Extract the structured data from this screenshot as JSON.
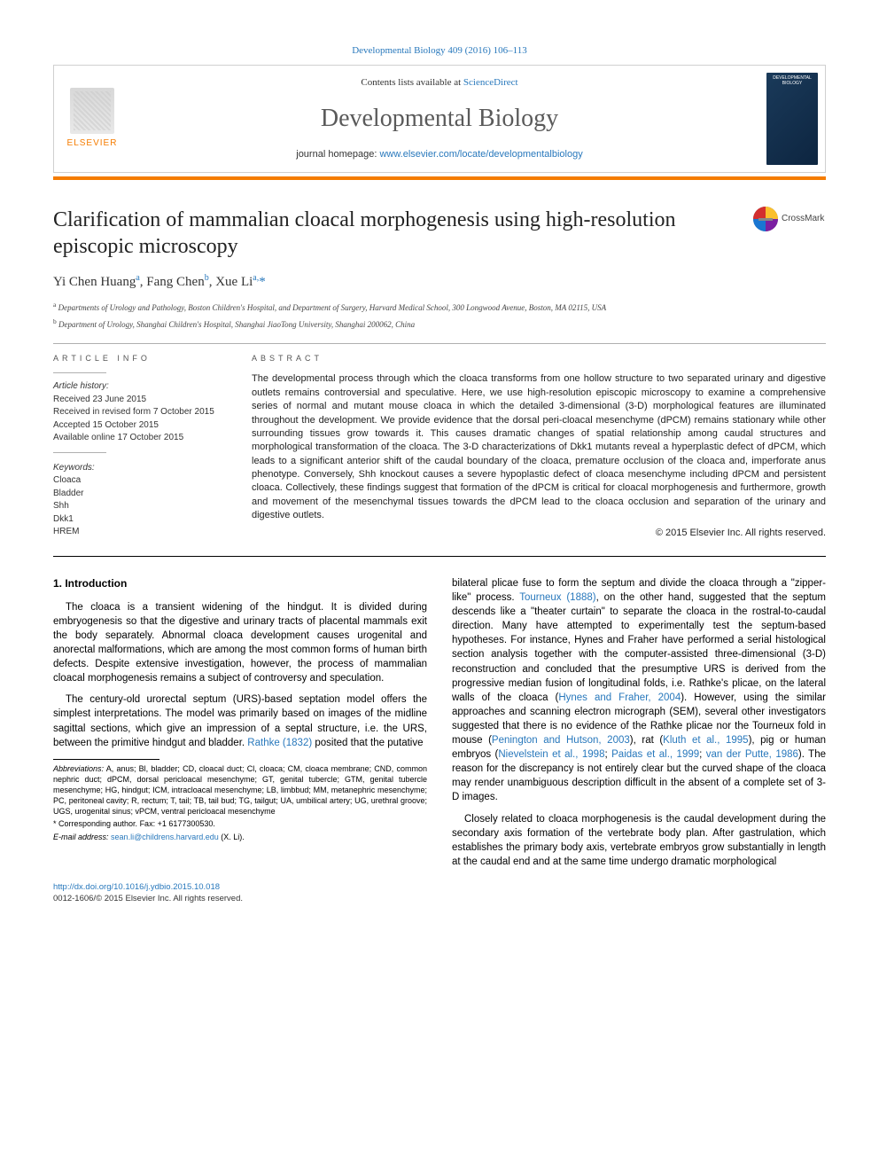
{
  "colors": {
    "link": "#2878bc",
    "accent": "#f57c00",
    "text": "#222222",
    "rule": "#b0b0b0",
    "background": "#ffffff"
  },
  "typography": {
    "body_family": "Arial, sans-serif",
    "title_family": "Georgia, serif",
    "article_title_pt": 24,
    "journal_title_pt": 28,
    "body_pt": 11.5,
    "abstract_pt": 11,
    "affil_pt": 9,
    "footnote_pt": 9
  },
  "top_link_text": "Developmental Biology 409 (2016) 106–113",
  "header": {
    "contents_prefix": "Contents lists available at ",
    "contents_link": "ScienceDirect",
    "journal_title": "Developmental Biology",
    "homepage_prefix": "journal homepage: ",
    "homepage_url": "www.elsevier.com/locate/developmentalbiology",
    "publisher_logo_text": "ELSEVIER",
    "cover_title": "DEVELOPMENTAL BIOLOGY"
  },
  "crossmark_label": "CrossMark",
  "article": {
    "title": "Clarification of mammalian cloacal morphogenesis using high-resolution episcopic microscopy",
    "authors_html": "Yi Chen Huang<sup>a</sup>, Fang Chen<sup>b</sup>, Xue Li<sup>a,</sup><span class='ast'>*</span>",
    "affiliations": [
      {
        "tag": "a",
        "text": "Departments of Urology and Pathology, Boston Children's Hospital, and Department of Surgery, Harvard Medical School, 300 Longwood Avenue, Boston, MA 02115, USA"
      },
      {
        "tag": "b",
        "text": "Department of Urology, Shanghai Children's Hospital, Shanghai JiaoTong University, Shanghai 200062, China"
      }
    ]
  },
  "article_info": {
    "label": "ARTICLE INFO",
    "history_intro": "Article history:",
    "history": [
      "Received 23 June 2015",
      "Received in revised form 7 October 2015",
      "Accepted 15 October 2015",
      "Available online 17 October 2015"
    ],
    "keywords_intro": "Keywords:",
    "keywords": [
      "Cloaca",
      "Bladder",
      "Shh",
      "Dkk1",
      "HREM"
    ]
  },
  "abstract": {
    "label": "ABSTRACT",
    "text": "The developmental process through which the cloaca transforms from one hollow structure to two separated urinary and digestive outlets remains controversial and speculative. Here, we use high-resolution episcopic microscopy to examine a comprehensive series of normal and mutant mouse cloaca in which the detailed 3-dimensional (3-D) morphological features are illuminated throughout the development. We provide evidence that the dorsal peri-cloacal mesenchyme (dPCM) remains stationary while other surrounding tissues grow towards it. This causes dramatic changes of spatial relationship among caudal structures and morphological transformation of the cloaca. The 3-D characterizations of Dkk1 mutants reveal a hyperplastic defect of dPCM, which leads to a significant anterior shift of the caudal boundary of the cloaca, premature occlusion of the cloaca and, imperforate anus phenotype. Conversely, Shh knockout causes a severe hypoplastic defect of cloaca mesenchyme including dPCM and persistent cloaca. Collectively, these findings suggest that formation of the dPCM is critical for cloacal morphogenesis and furthermore, growth and movement of the mesenchymal tissues towards the dPCM lead to the cloaca occlusion and separation of the urinary and digestive outlets.",
    "copyright": "© 2015 Elsevier Inc. All rights reserved."
  },
  "body": {
    "section_heading": "1.  Introduction",
    "p1": "The cloaca is a transient widening of the hindgut. It is divided during embryogenesis so that the digestive and urinary tracts of placental mammals exit the body separately. Abnormal cloaca development causes urogenital and anorectal malformations, which are among the most common forms of human birth defects. Despite extensive investigation, however, the process of mammalian cloacal morphogenesis remains a subject of controversy and speculation.",
    "p2_pre": "The century-old urorectal septum (URS)-based septation model offers the simplest interpretations. The model was primarily based on images of the midline sagittal sections, which give an impression of a septal structure, i.e. the URS, between the primitive hindgut and bladder. ",
    "p2_ref1": "Rathke (1832)",
    "p2_post": " posited that the putative",
    "p3_pre": "bilateral plicae fuse to form the septum and divide the cloaca through a \"zipper-like\" process. ",
    "p3_ref1": "Tourneux (1888)",
    "p3_mid1": ", on the other hand, suggested that the septum descends like a \"theater curtain\" to separate the cloaca in the rostral-to-caudal direction. Many have attempted to experimentally test the septum-based hypotheses. For instance, Hynes and Fraher have performed a serial histological section analysis together with the computer-assisted three-dimensional (3-D) reconstruction and concluded that the presumptive URS is derived from the progressive median fusion of longitudinal folds, i.e. Rathke's plicae, on the lateral walls of the cloaca (",
    "p3_ref2": "Hynes and Fraher, 2004",
    "p3_mid2": "). However, using the similar approaches and scanning electron micrograph (SEM), several other investigators suggested that there is no evidence of the Rathke plicae nor the Tourneux fold in mouse (",
    "p3_ref3": "Penington and Hutson, 2003",
    "p3_mid3": "), rat (",
    "p3_ref4": "Kluth et al., 1995",
    "p3_mid4": "), pig or human embryos (",
    "p3_ref5": "Nievelstein et al., 1998",
    "p3_mid5": "; ",
    "p3_ref6": "Paidas et al., 1999",
    "p3_mid6": "; ",
    "p3_ref7": "van der Putte, 1986",
    "p3_post": "). The reason for the discrepancy is not entirely clear but the curved shape of the cloaca may render unambiguous description difficult in the absent of a complete set of 3-D images.",
    "p4": "Closely related to cloaca morphogenesis is the caudal development during the secondary axis formation of the vertebrate body plan. After gastrulation, which establishes the primary body axis, vertebrate embryos grow substantially in length at the caudal end and at the same time undergo dramatic morphological"
  },
  "footnotes": {
    "abbrev_label": "Abbreviations:",
    "abbrev_text": " A, anus; Bl, bladder; CD, cloacal duct; Cl, cloaca; CM, cloaca membrane; CND, common nephric duct; dPCM, dorsal pericloacal mesenchyme; GT, genital tubercle; GTM, genital tubercle mesenchyme; HG, hindgut; ICM, intracloacal mesenchyme; LB, limbbud; MM, metanephric mesenchyme; PC, peritoneal cavity; R, rectum; T, tail; TB, tail bud; TG, tailgut; UA, umbilical artery; UG, urethral groove; UGS, urogenital sinus; vPCM, ventral pericloacal mesenchyme",
    "corr_label": "* Corresponding author. Fax: ",
    "corr_fax": "+1 6177300530.",
    "email_label": "E-mail address:",
    "email": "sean.li@childrens.harvard.edu",
    "email_who": " (X. Li)."
  },
  "footer": {
    "doi": "http://dx.doi.org/10.1016/j.ydbio.2015.10.018",
    "issn_line": "0012-1606/© 2015 Elsevier Inc. All rights reserved."
  }
}
